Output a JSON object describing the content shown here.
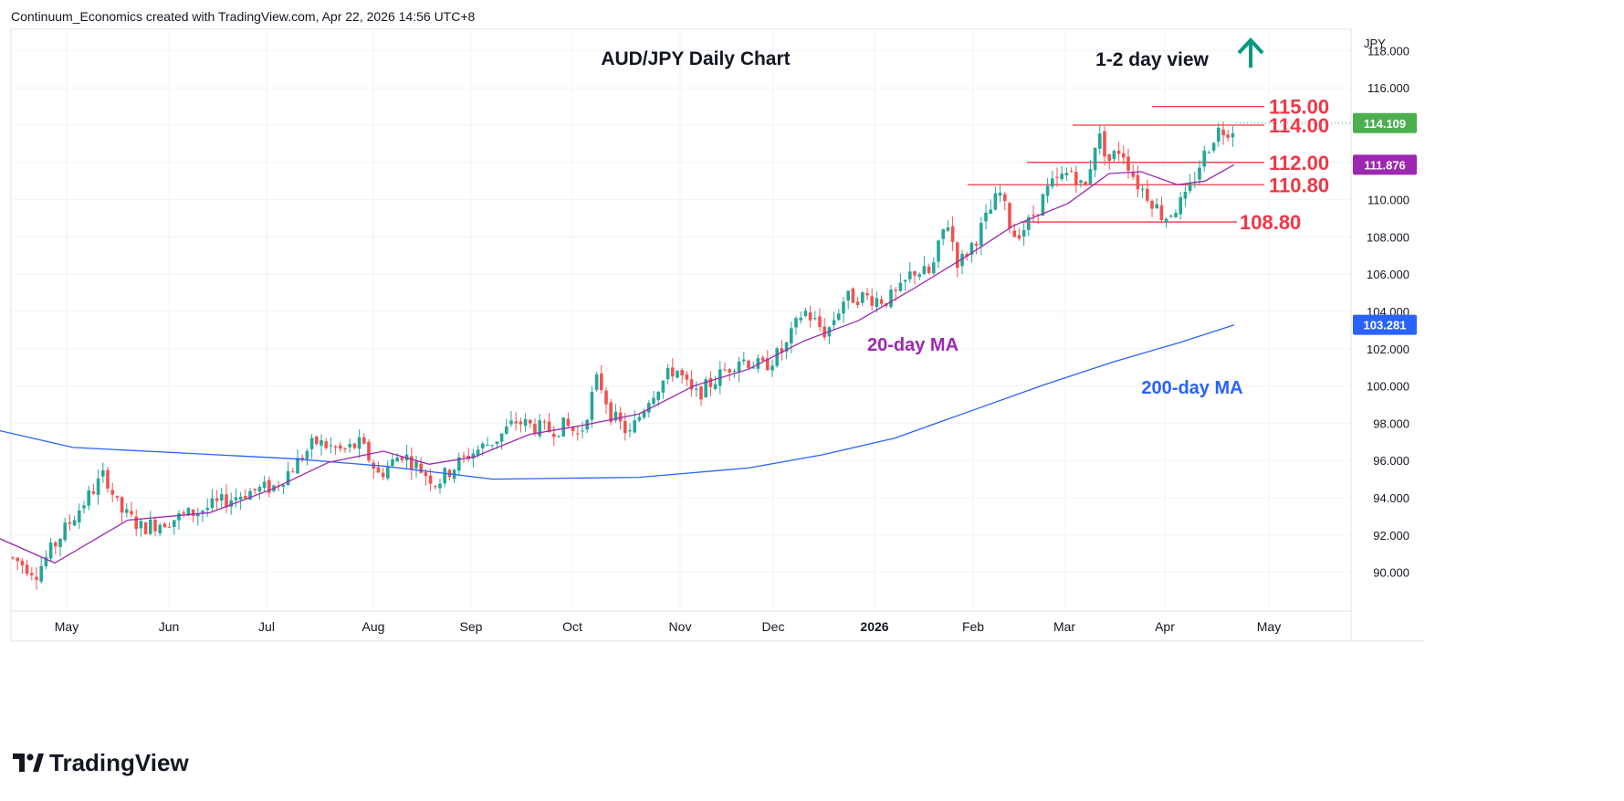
{
  "header": {
    "attribution": "Continuum_Economics created with TradingView.com, Apr 22, 2026 14:56 UTC+8"
  },
  "branding": {
    "logo_text": "TradingView"
  },
  "chart": {
    "title": "AUD/JPY Daily Chart",
    "view_label": "1-2 day view",
    "view_arrow": "up-arrow-icon",
    "currency": "JPY"
  },
  "colors": {
    "up": "#26a69a",
    "down": "#ef5350",
    "ma20": "#9c27b0",
    "ma200": "#2962ff",
    "level": "#f23645",
    "arrow": "#089981",
    "last_price_bg": "#4caf50"
  },
  "price_badges": {
    "last": "114.109",
    "ma20": "111.876",
    "ma200": "103.281"
  },
  "level_labels": [
    "115.00",
    "114.00",
    "112.00",
    "110.80",
    "108.80"
  ],
  "ma_labels": {
    "ma20": "20-day MA",
    "ma200": "200-day MA"
  },
  "y_ticks": [
    "118.000",
    "116.000",
    "114.000",
    "112.000",
    "110.000",
    "108.000",
    "106.000",
    "104.000",
    "102.000",
    "100.000",
    "98.000",
    "96.000",
    "94.000",
    "92.000",
    "90.000"
  ],
  "x_ticks": [
    "May",
    "Jun",
    "Jul",
    "Aug",
    "Sep",
    "Oct",
    "Nov",
    "Dec",
    "2026",
    "Feb",
    "Mar",
    "Apr",
    "May"
  ],
  "chart_data": {
    "type": "candlestick",
    "title": "AUD/JPY Daily Chart",
    "ylabel": "JPY",
    "ylim": [
      89,
      119
    ],
    "x_ticks": [
      "May",
      "Jun",
      "Jul",
      "Aug",
      "Sep",
      "Oct",
      "Nov",
      "Dec",
      "2026",
      "Feb",
      "Mar",
      "Apr",
      "May"
    ],
    "horizontal_levels": [
      115.0,
      114.0,
      112.0,
      110.8,
      108.8
    ],
    "last_price": 114.109,
    "series": [
      {
        "name": "20-day MA",
        "values": [
          [
            0,
            91.8
          ],
          [
            60,
            90.5
          ],
          [
            140,
            92.8
          ],
          [
            230,
            93.2
          ],
          [
            300,
            94.5
          ],
          [
            360,
            95.9
          ],
          [
            420,
            96.5
          ],
          [
            470,
            95.8
          ],
          [
            520,
            96.2
          ],
          [
            580,
            97.4
          ],
          [
            640,
            97.9
          ],
          [
            700,
            98.5
          ],
          [
            760,
            100.0
          ],
          [
            820,
            100.9
          ],
          [
            880,
            102.4
          ],
          [
            940,
            103.5
          ],
          [
            1000,
            105.2
          ],
          [
            1060,
            107.0
          ],
          [
            1110,
            108.6
          ],
          [
            1170,
            109.8
          ],
          [
            1215,
            111.4
          ],
          [
            1250,
            111.5
          ],
          [
            1290,
            110.8
          ],
          [
            1320,
            111.0
          ],
          [
            1352,
            111.876
          ]
        ]
      },
      {
        "name": "200-day MA",
        "values": [
          [
            0,
            97.6
          ],
          [
            80,
            96.7
          ],
          [
            200,
            96.4
          ],
          [
            320,
            96.1
          ],
          [
            420,
            95.7
          ],
          [
            540,
            95.0
          ],
          [
            700,
            95.1
          ],
          [
            820,
            95.6
          ],
          [
            900,
            96.3
          ],
          [
            980,
            97.2
          ],
          [
            1060,
            98.6
          ],
          [
            1140,
            100.0
          ],
          [
            1220,
            101.3
          ],
          [
            1290,
            102.3
          ],
          [
            1352,
            103.281
          ]
        ]
      }
    ],
    "path_points": [
      [
        12,
        90.8
      ],
      [
        40,
        90.0
      ],
      [
        75,
        92.6
      ],
      [
        115,
        95.3
      ],
      [
        130,
        93.4
      ],
      [
        155,
        92.4
      ],
      [
        200,
        93.0
      ],
      [
        235,
        93.6
      ],
      [
        270,
        94.3
      ],
      [
        300,
        94.6
      ],
      [
        320,
        95.6
      ],
      [
        345,
        97.0
      ],
      [
        375,
        96.5
      ],
      [
        395,
        96.9
      ],
      [
        415,
        95.2
      ],
      [
        440,
        96.4
      ],
      [
        478,
        94.8
      ],
      [
        510,
        96.2
      ],
      [
        545,
        97.2
      ],
      [
        565,
        98.1
      ],
      [
        600,
        97.6
      ],
      [
        620,
        97.9
      ],
      [
        635,
        97.3
      ],
      [
        655,
        100.5
      ],
      [
        670,
        98.4
      ],
      [
        690,
        97.4
      ],
      [
        712,
        99.5
      ],
      [
        740,
        101.0
      ],
      [
        760,
        99.4
      ],
      [
        780,
        100.2
      ],
      [
        810,
        101.5
      ],
      [
        835,
        101.0
      ],
      [
        860,
        102.0
      ],
      [
        880,
        104.1
      ],
      [
        905,
        102.8
      ],
      [
        925,
        104.7
      ],
      [
        945,
        104.8
      ],
      [
        970,
        104.6
      ],
      [
        985,
        105.0
      ],
      [
        1000,
        106.2
      ],
      [
        1020,
        106.0
      ],
      [
        1037,
        109.0
      ],
      [
        1050,
        106.5
      ],
      [
        1070,
        108.0
      ],
      [
        1095,
        110.4
      ],
      [
        1110,
        108.1
      ],
      [
        1125,
        108.6
      ],
      [
        1150,
        110.7
      ],
      [
        1175,
        111.6
      ],
      [
        1188,
        110.4
      ],
      [
        1202,
        113.6
      ],
      [
        1215,
        112.1
      ],
      [
        1228,
        112.8
      ],
      [
        1245,
        110.9
      ],
      [
        1260,
        110.1
      ],
      [
        1275,
        109.0
      ],
      [
        1300,
        110.1
      ],
      [
        1315,
        112.0
      ],
      [
        1333,
        113.7
      ],
      [
        1350,
        113.8
      ],
      [
        1354,
        114.1
      ]
    ]
  }
}
